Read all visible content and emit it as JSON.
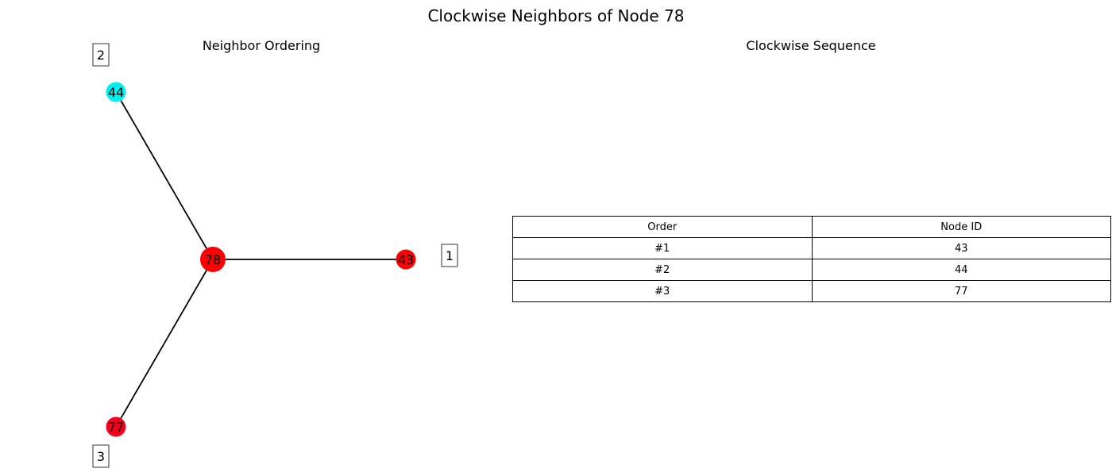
{
  "title": "Clockwise Neighbors of Node 78",
  "left_panel": {
    "title": "Neighbor Ordering"
  },
  "right_panel": {
    "title": "Clockwise Sequence"
  },
  "graph": {
    "center": {
      "id": "78",
      "color": "#ff0000"
    },
    "neighbors": [
      {
        "id": "43",
        "order": "1",
        "color": "#ff0000"
      },
      {
        "id": "44",
        "order": "2",
        "color": "#00f0f0"
      },
      {
        "id": "77",
        "order": "3",
        "color": "#f2001c"
      }
    ]
  },
  "table": {
    "headers": [
      "Order",
      "Node ID"
    ],
    "rows": [
      [
        "#1",
        "43"
      ],
      [
        "#2",
        "44"
      ],
      [
        "#3",
        "77"
      ]
    ]
  }
}
